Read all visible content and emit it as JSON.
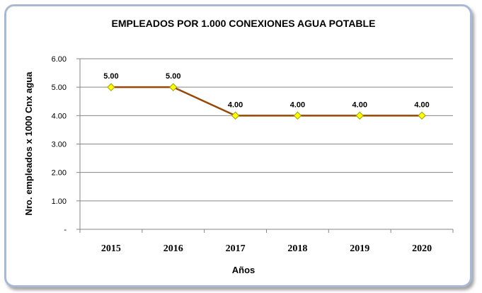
{
  "chart_data": {
    "type": "line",
    "title": "EMPLEADOS POR 1.000 CONEXIONES AGUA POTABLE",
    "xlabel": "Años",
    "ylabel": "Nro. empleados x 1000 Cnx agua",
    "categories": [
      "2015",
      "2016",
      "2017",
      "2018",
      "2019",
      "2020"
    ],
    "values": [
      5,
      5,
      4,
      4,
      4,
      4
    ],
    "data_labels": [
      "5.00",
      "5.00",
      "4.00",
      "4.00",
      "4.00",
      "4.00"
    ],
    "y_ticks": [
      "-",
      "1.00",
      "2.00",
      "3.00",
      "4.00",
      "5.00",
      "6.00"
    ],
    "ylim": [
      0,
      6
    ],
    "grid": true,
    "legend": "none",
    "line_color": "#974806",
    "marker_fill": "#ffff00",
    "marker_stroke": "#999900"
  }
}
